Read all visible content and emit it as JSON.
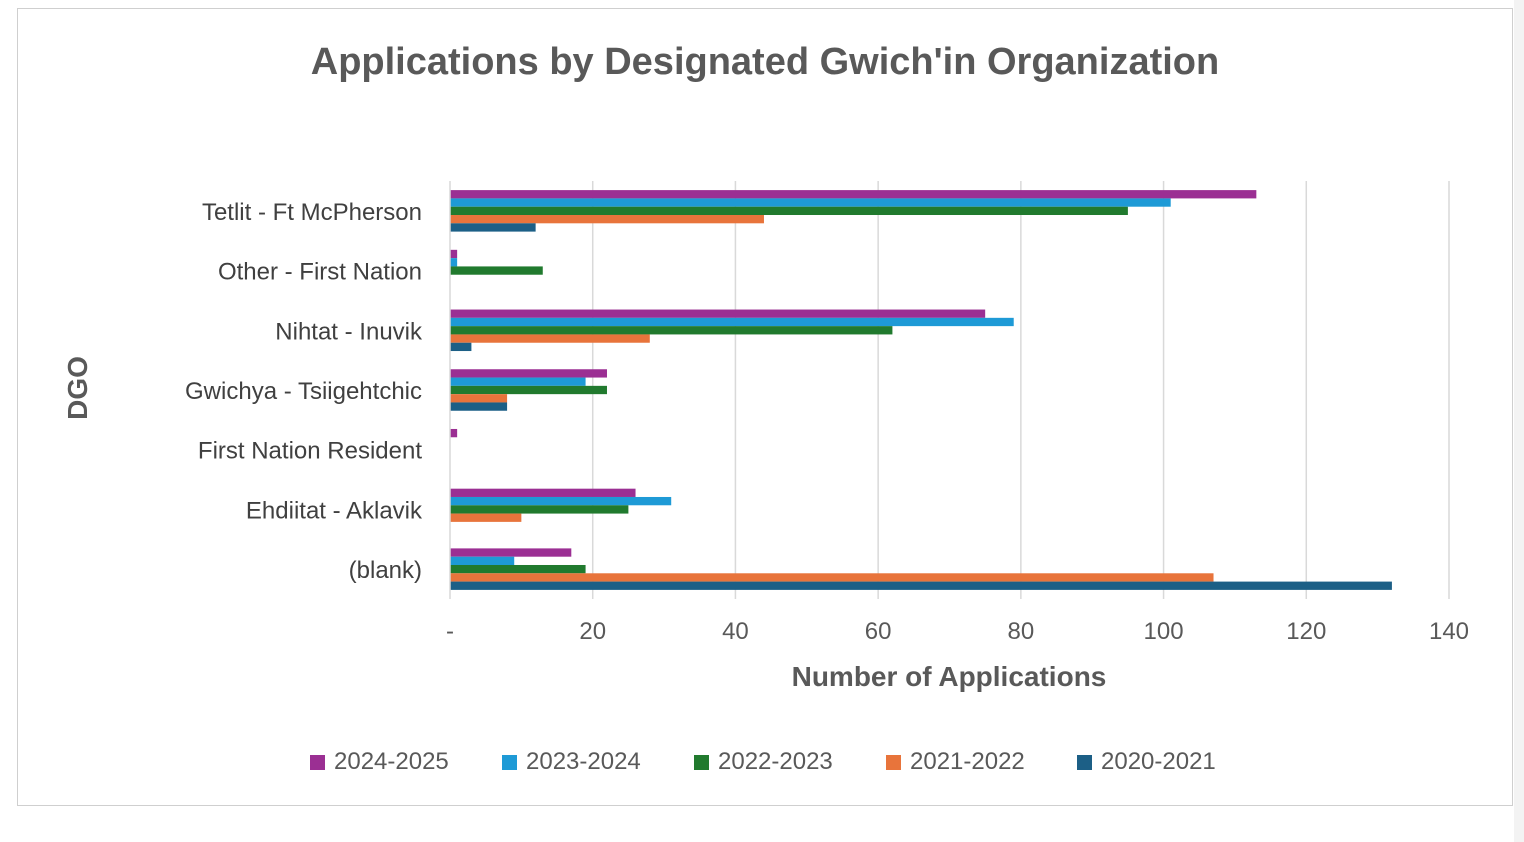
{
  "chart_data": {
    "type": "bar",
    "orientation": "horizontal",
    "title": "Applications by Designated Gwich'in Organization",
    "xlabel": "Number of Applications",
    "ylabel": "DGO",
    "xlim": [
      0,
      140
    ],
    "xticks": [
      0,
      20,
      40,
      60,
      80,
      100,
      120,
      140
    ],
    "xtick_labels": [
      "-",
      "20",
      "40",
      "60",
      "80",
      "100",
      "120",
      "140"
    ],
    "grid": "vertical",
    "legend_position": "bottom",
    "categories": [
      "Tetlit - Ft McPherson",
      "Other - First Nation",
      "Nihtat - Inuvik",
      "Gwichya - Tsiigehtchic",
      "First Nation Resident",
      "Ehdiitat - Aklavik",
      "(blank)"
    ],
    "series": [
      {
        "name": "2024-2025",
        "color": "#9b2f93",
        "values": [
          113,
          1,
          75,
          22,
          1,
          26,
          17
        ]
      },
      {
        "name": "2023-2024",
        "color": "#1e9ad6",
        "values": [
          101,
          1,
          79,
          19,
          0,
          31,
          9
        ]
      },
      {
        "name": "2022-2023",
        "color": "#217a2e",
        "values": [
          95,
          13,
          62,
          22,
          0,
          25,
          19
        ]
      },
      {
        "name": "2021-2022",
        "color": "#e8743b",
        "values": [
          44,
          0,
          28,
          8,
          0,
          10,
          107
        ]
      },
      {
        "name": "2020-2021",
        "color": "#1c5f86",
        "values": [
          12,
          0,
          3,
          8,
          0,
          0,
          132
        ]
      }
    ]
  }
}
